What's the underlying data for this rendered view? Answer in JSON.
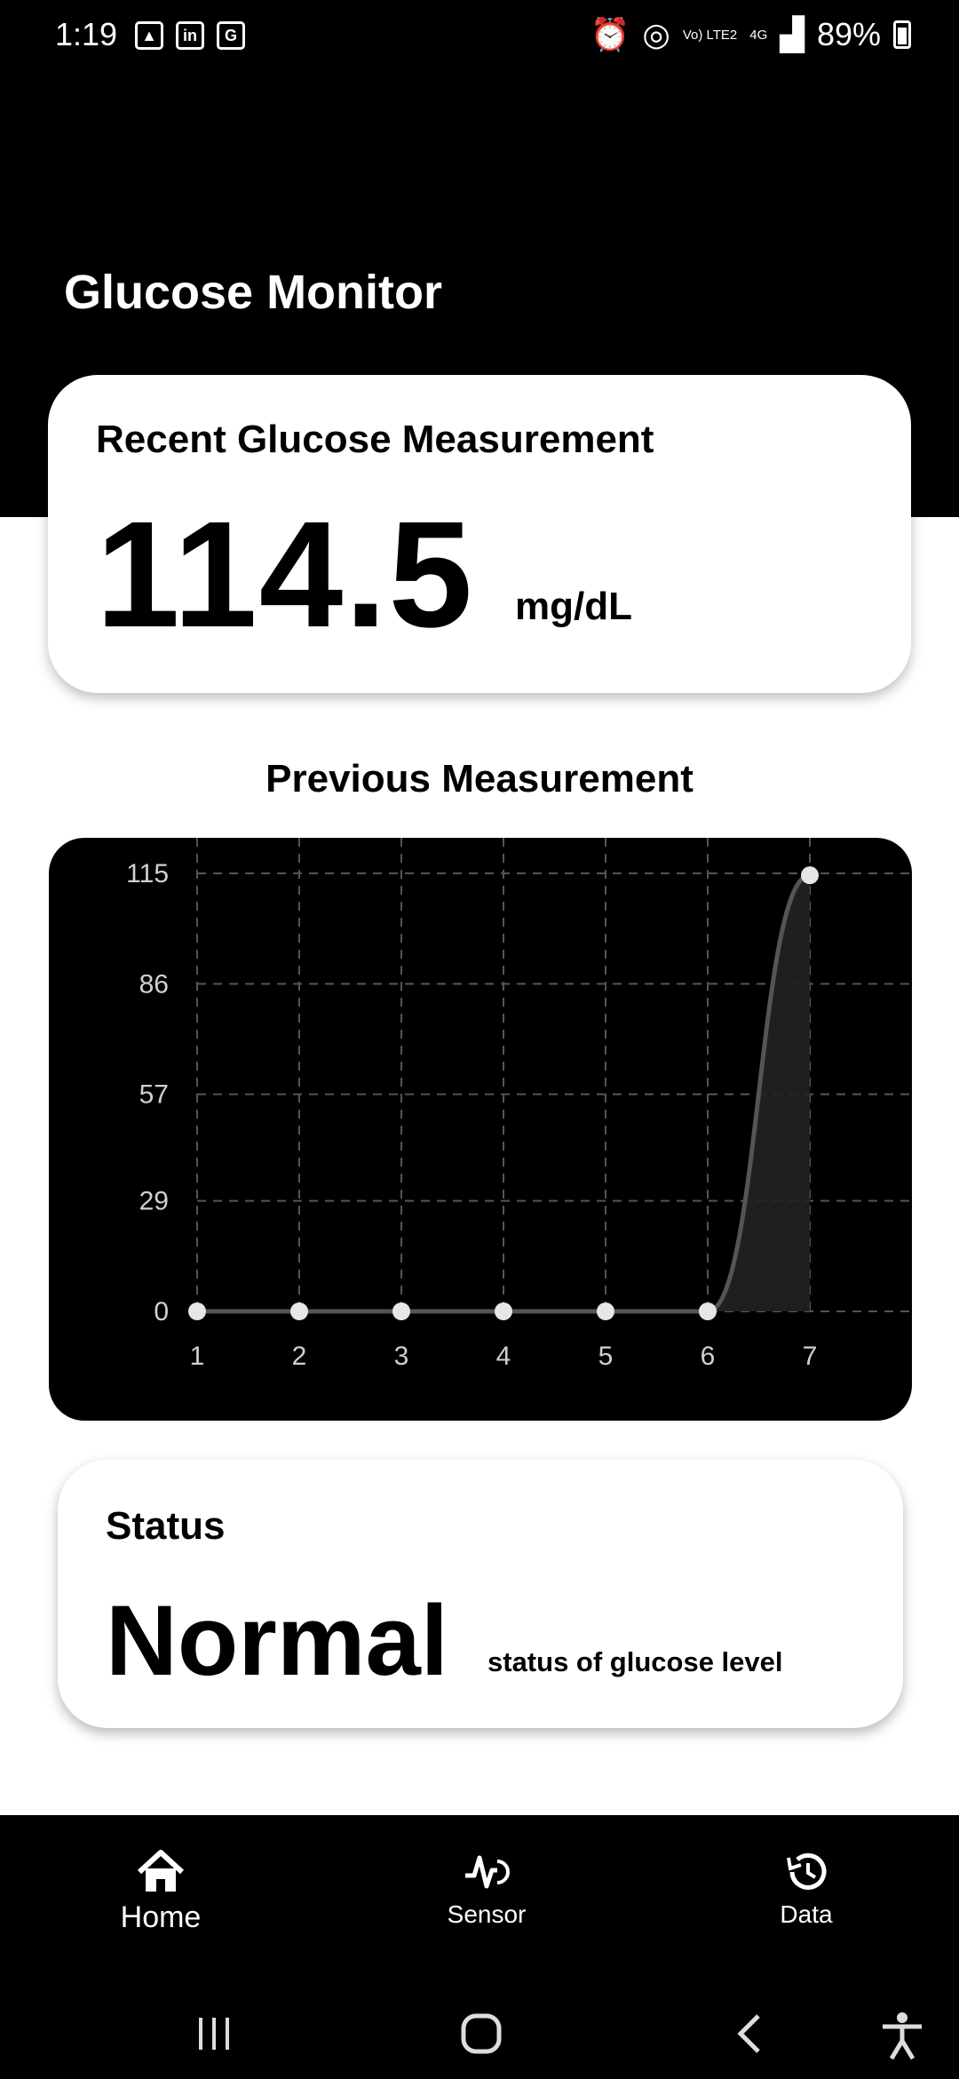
{
  "status_bar": {
    "time": "1:19",
    "left_icons": [
      "image-icon",
      "linkedin-icon",
      "translate-icon"
    ],
    "network": "Vo) LTE2",
    "data_type": "4G",
    "battery": "89%"
  },
  "app": {
    "title": "Glucose Monitor"
  },
  "recent": {
    "label": "Recent Glucose Measurement",
    "value": "114.5",
    "unit": "mg/dL"
  },
  "previous": {
    "title": "Previous Measurement"
  },
  "chart_data": {
    "type": "area",
    "x": [
      1,
      2,
      3,
      4,
      5,
      6,
      7
    ],
    "values": [
      0,
      0,
      0,
      0,
      0,
      0,
      114.5
    ],
    "y_ticks": [
      "0",
      "29",
      "57",
      "86",
      "115"
    ],
    "x_ticks": [
      "1",
      "2",
      "3",
      "4",
      "5",
      "6",
      "7"
    ],
    "ylim": [
      0,
      115
    ],
    "grid": true,
    "colors": {
      "line": "#555555",
      "fill": "#222222",
      "point": "#e6e6e6",
      "grid": "#555555",
      "tick_text": "#d0d0d0"
    }
  },
  "status": {
    "label": "Status",
    "value": "Normal",
    "description": "status of glucose level"
  },
  "nav": {
    "items": [
      {
        "label": "Home",
        "icon": "home-icon"
      },
      {
        "label": "Sensor",
        "icon": "sensor-icon"
      },
      {
        "label": "Data",
        "icon": "history-icon"
      }
    ]
  },
  "system_nav": {
    "icons": [
      "recents-icon",
      "home-circle-icon",
      "back-icon",
      "accessibility-icon"
    ]
  }
}
